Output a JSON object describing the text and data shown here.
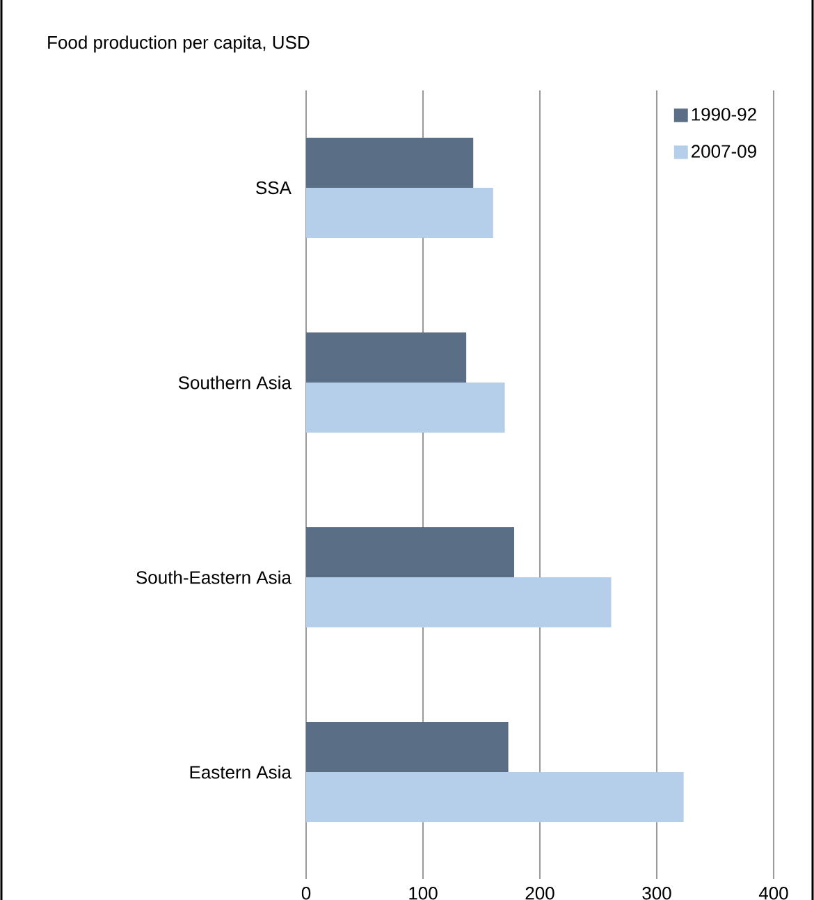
{
  "chart_data": {
    "type": "bar",
    "orientation": "horizontal",
    "title": "Food production per capita, USD",
    "categories": [
      "SSA",
      "Southern Asia",
      "South-Eastern Asia",
      "Eastern Asia"
    ],
    "series": [
      {
        "name": "1990-92",
        "color": "#5a6f85",
        "values": [
          143,
          137,
          178,
          173
        ]
      },
      {
        "name": "2007-09",
        "color": "#b5cfea",
        "values": [
          160,
          170,
          261,
          323
        ]
      }
    ],
    "xlim": [
      0,
      400
    ],
    "xticks": [
      0,
      100,
      200,
      300,
      400
    ],
    "grid": "x",
    "legend": "top right"
  }
}
